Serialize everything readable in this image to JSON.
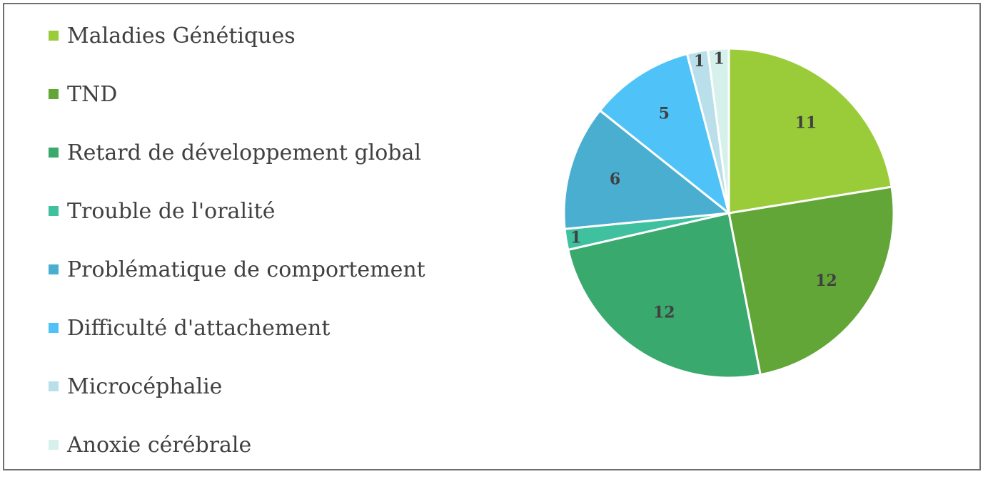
{
  "chart_data": {
    "type": "pie",
    "categories": [
      "Maladies Génétiques",
      "TND",
      "Retard de développement global",
      "Trouble de l'oralité",
      "Problématique de comportement",
      "Difficulté d'attachement",
      "Microcéphalie",
      "Anoxie cérébrale"
    ],
    "values": [
      11,
      12,
      12,
      1,
      6,
      5,
      1,
      1
    ],
    "data_labels": [
      "11",
      "12",
      "12",
      "1",
      "6",
      "5",
      "1",
      "1"
    ],
    "colors": [
      "#9acc3a",
      "#62a637",
      "#3aa96e",
      "#3fc09e",
      "#4aaed1",
      "#4fc3f7",
      "#b9dfea",
      "#d6f1ec"
    ],
    "legend_position": "left",
    "start_angle_deg": 0,
    "direction": "clockwise"
  }
}
